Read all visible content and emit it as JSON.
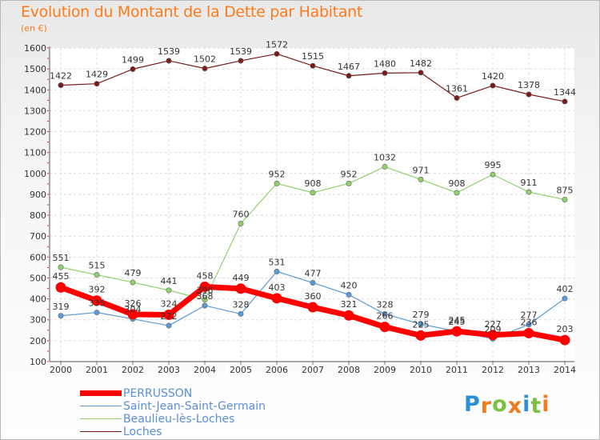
{
  "header": {
    "title": "Evolution du Montant de la Dette par Habitant",
    "unit": "(en €)"
  },
  "chart_data": {
    "type": "line",
    "title": "Evolution du Montant de la Dette par Habitant",
    "ylabel": "(en €)",
    "xlabel": "",
    "x": [
      "2000",
      "2001",
      "2002",
      "2003",
      "2004",
      "2005",
      "2006",
      "2007",
      "2008",
      "2009",
      "2010",
      "2011",
      "2012",
      "2013",
      "2014"
    ],
    "yticks": [
      100,
      200,
      300,
      400,
      500,
      600,
      700,
      800,
      900,
      1000,
      1100,
      1200,
      1300,
      1400,
      1500,
      1600
    ],
    "ylim": [
      100,
      1600
    ],
    "grid": true,
    "series": [
      {
        "name": "Loches",
        "color": "#7a1a1a",
        "values": [
          1422,
          1429,
          1499,
          1539,
          1502,
          1539,
          1572,
          1515,
          1467,
          1480,
          1482,
          1361,
          1420,
          1378,
          1344
        ]
      },
      {
        "name": "Beaulieu-lès-Loches",
        "color": "#8fd16a",
        "values": [
          551,
          515,
          479,
          441,
          396,
          760,
          952,
          908,
          952,
          1032,
          971,
          908,
          995,
          911,
          875
        ]
      },
      {
        "name": "Saint-Jean-Saint-Germain",
        "color": "#5b9bd5",
        "values": [
          319,
          335,
          304,
          272,
          368,
          328,
          531,
          477,
          420,
          328,
          279,
          245,
          209,
          277,
          402
        ]
      },
      {
        "name": "PERRUSSON",
        "color": "#ff0000",
        "values": [
          455,
          392,
          326,
          324,
          458,
          449,
          403,
          360,
          321,
          266,
          225,
          245,
          227,
          236,
          203
        ]
      }
    ],
    "legend": [
      "PERRUSSON",
      "Saint-Jean-Saint-Germain",
      "Beaulieu-lès-Loches",
      "Loches"
    ],
    "legend_position": "bottom-left"
  },
  "logo": {
    "letters": [
      "P",
      "r",
      "o",
      "x",
      "i",
      "t",
      "i"
    ],
    "colors": [
      "#2b8fd8",
      "#f07c1f",
      "#7cc142",
      "#f07c1f",
      "#2b8fd8",
      "#7cc142",
      "#f07c1f"
    ]
  }
}
